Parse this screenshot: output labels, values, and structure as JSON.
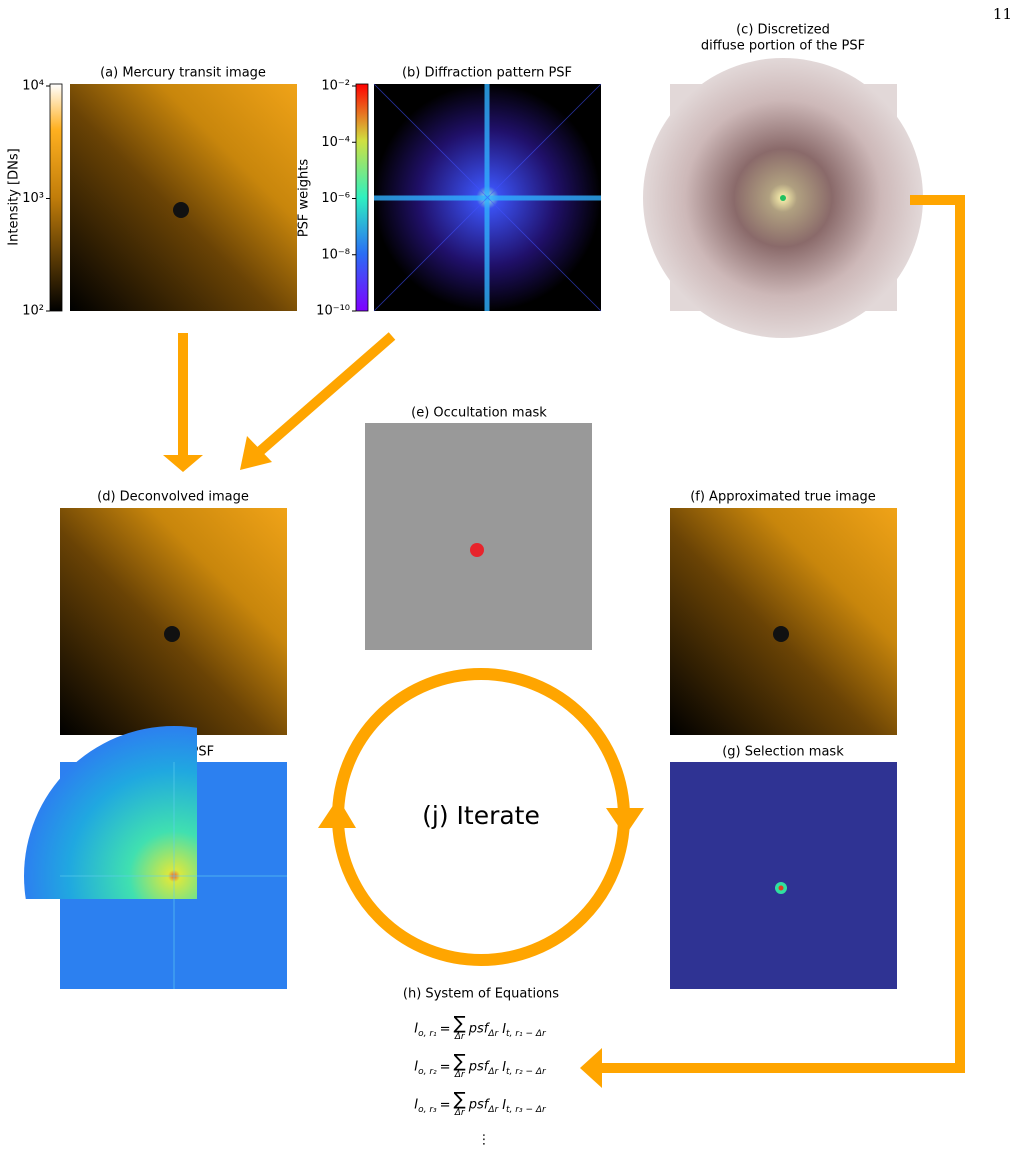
{
  "page_number": "11",
  "panels": {
    "a": {
      "title": "(a) Mercury transit image",
      "colorbar_label": "Intensity [DNs]",
      "colorbar_ticks": [
        "10⁴",
        "10³",
        "10²"
      ]
    },
    "b": {
      "title": "(b) Diffraction pattern PSF",
      "colorbar_label": "PSF weights",
      "colorbar_ticks": [
        "10⁻²",
        "10⁻⁴",
        "10⁻⁶",
        "10⁻⁸",
        "10⁻¹⁰"
      ]
    },
    "c": {
      "title": [
        "(c) Discretized",
        "diffuse portion of the PSF"
      ]
    },
    "d": {
      "title": "(d) Deconvolved image"
    },
    "e": {
      "title": "(e) Occultation mask"
    },
    "f": {
      "title": "(f) Approximated true image"
    },
    "g": {
      "title": "(g) Selection mask"
    },
    "i": {
      "title": "(i) Fitted PSF"
    },
    "j": {
      "title": "(j) Iterate"
    },
    "h": {
      "title": "(h) System of Equations",
      "equations": [
        {
          "lhs": "I",
          "lhs_sub": "o, r₁",
          "eq": "=",
          "sum": "∑",
          "sum_sub": "Δr",
          "psf": "psf",
          "psf_sub": "Δr",
          "rhs": "I",
          "rhs_sub": "t, r₁ − Δr"
        },
        {
          "lhs": "I",
          "lhs_sub": "o, r₂",
          "eq": "=",
          "sum": "∑",
          "sum_sub": "Δr",
          "psf": "psf",
          "psf_sub": "Δr",
          "rhs": "I",
          "rhs_sub": "t, r₂ − Δr"
        },
        {
          "lhs": "I",
          "lhs_sub": "o, r₃",
          "eq": "=",
          "sum": "∑",
          "sum_sub": "Δr",
          "psf": "psf",
          "psf_sub": "Δr",
          "rhs": "I",
          "rhs_sub": "t, r₃ − Δr"
        }
      ],
      "continuation": "⋮"
    }
  }
}
